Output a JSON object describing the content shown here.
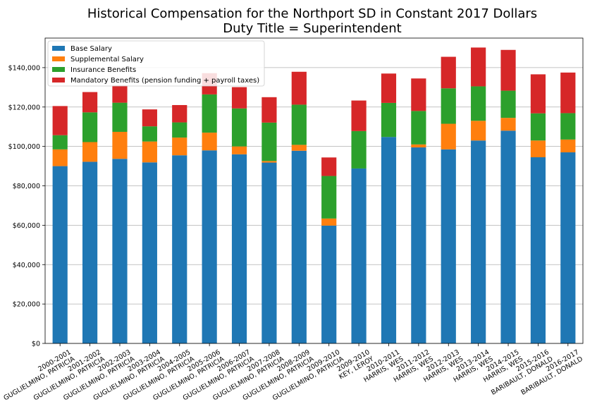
{
  "chart_data": {
    "type": "bar",
    "stacked": true,
    "title": "Historical Compensation for the Northport SD in Constant 2017 Dollars",
    "subtitle": "Duty Title = Superintendent",
    "xlabel": "",
    "ylabel": "",
    "ylim": [
      0,
      155000
    ],
    "yticks": [
      0,
      20000,
      40000,
      60000,
      80000,
      100000,
      120000,
      140000
    ],
    "ytick_labels": [
      "$0",
      "$20,000",
      "$40,000",
      "$60,000",
      "$80,000",
      "$100,000",
      "$120,000",
      "$140,000"
    ],
    "grid": "horizontal",
    "legend_position": "top-left",
    "categories": [
      [
        "2000-2001",
        "GUGLIELMINO, PATRICIA"
      ],
      [
        "2001-2002",
        "GUGLIELMINO, PATRICIA"
      ],
      [
        "2002-2003",
        "GUGLIELMINO, PATRICIA"
      ],
      [
        "2003-2004",
        "GUGLIELMINO, PATRICIA"
      ],
      [
        "2004-2005",
        "GUGLIELMINO, PATRICIA"
      ],
      [
        "2005-2006",
        "GUGLIELMINO, PATRICIA"
      ],
      [
        "2006-2007",
        "GUGLIELMINO, PATRICIA"
      ],
      [
        "2007-2008",
        "GUGLIELMINO, PATRICIA"
      ],
      [
        "2008-2009",
        "GUGLIELMINO, PATRICIA"
      ],
      [
        "2009-2010",
        "GUGLIELMINO, PATRICIA"
      ],
      [
        "2009-2010",
        "KEY, LEROY"
      ],
      [
        "2010-2011",
        "HARRIS, WES"
      ],
      [
        "2011-2012",
        "HARRIS, WES"
      ],
      [
        "2012-2013",
        "HARRIS, WES"
      ],
      [
        "2013-2014",
        "HARRIS, WES"
      ],
      [
        "2014-2015",
        "HARRIS, WES"
      ],
      [
        "2015-2016",
        "BARIBAULT, DONALD"
      ],
      [
        "2016-2017",
        "BARIBAULT, DONALD"
      ]
    ],
    "series": [
      {
        "name": "Base Salary",
        "color": "#1f77b4",
        "values": [
          90000,
          92200,
          93700,
          91900,
          95500,
          98000,
          96000,
          91800,
          97800,
          59800,
          88800,
          104800,
          99500,
          98500,
          103000,
          108000,
          94500,
          97000
        ]
      },
      {
        "name": "Supplemental Salary",
        "color": "#ff7f0e",
        "values": [
          8500,
          10000,
          13700,
          10600,
          9000,
          9000,
          4000,
          800,
          3000,
          3600,
          0,
          0,
          1500,
          13000,
          10000,
          6500,
          8500,
          6500
        ]
      },
      {
        "name": "Insurance Benefits",
        "color": "#2ca02c",
        "values": [
          7200,
          15100,
          14800,
          7700,
          7700,
          19400,
          19300,
          19500,
          20400,
          21600,
          19000,
          17300,
          17000,
          18000,
          17500,
          13800,
          13800,
          13400
        ]
      },
      {
        "name": "Mandatory Benefits (pension funding + payroll taxes)",
        "color": "#d62728",
        "values": [
          14800,
          10300,
          8800,
          8600,
          8800,
          10800,
          10800,
          12900,
          16700,
          9400,
          15500,
          14900,
          16500,
          16000,
          19700,
          20700,
          19800,
          20600
        ]
      }
    ]
  }
}
